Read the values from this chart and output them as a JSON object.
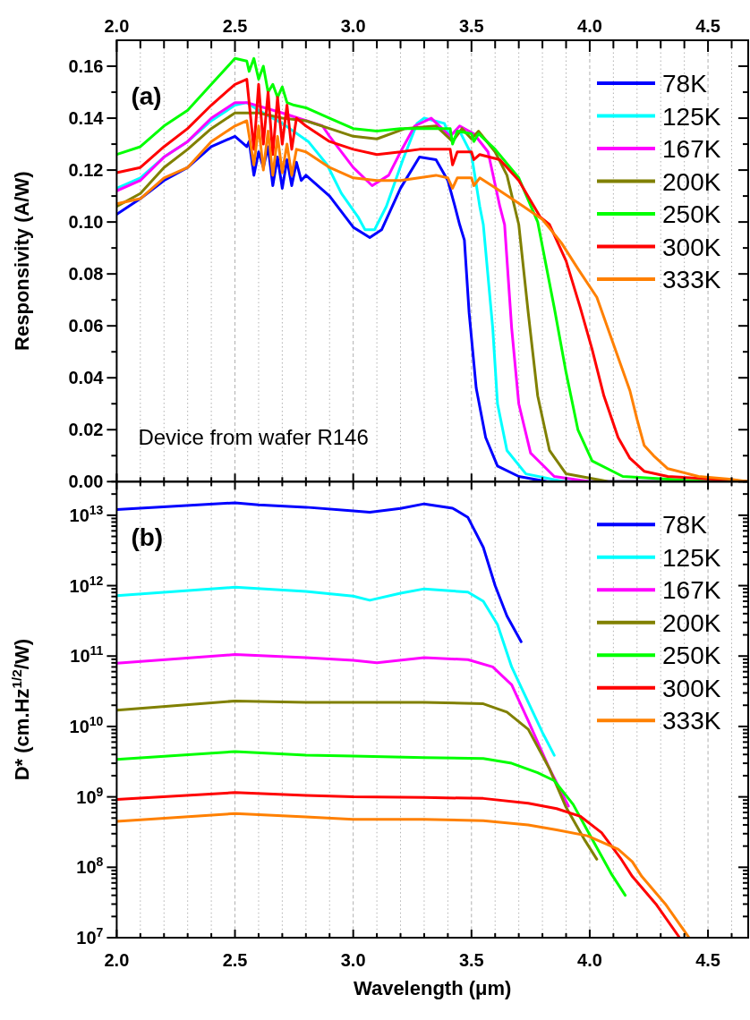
{
  "chart_data": [
    {
      "type": "line",
      "ylabel": "Responsivity (A/W)",
      "legend": "top right",
      "grid": "x",
      "line_style": "solid",
      "annotations": [
        "(a)",
        "Device from wafer R146"
      ],
      "xlim": [
        2.0,
        4.67
      ],
      "ylim": [
        0,
        0.17
      ],
      "xticks": [
        {
          "value": 2.0,
          "label": "2.0"
        },
        {
          "value": 2.1,
          "label": null
        },
        {
          "value": 2.2,
          "label": null
        },
        {
          "value": 2.3,
          "label": null
        },
        {
          "value": 2.4,
          "label": null
        },
        {
          "value": 2.5,
          "label": "2.5"
        },
        {
          "value": 2.6,
          "label": null
        },
        {
          "value": 2.7,
          "label": null
        },
        {
          "value": 2.8,
          "label": null
        },
        {
          "value": 2.9,
          "label": null
        },
        {
          "value": 3.0,
          "label": "3.0"
        },
        {
          "value": 3.1,
          "label": null
        },
        {
          "value": 3.2,
          "label": null
        },
        {
          "value": 3.3,
          "label": null
        },
        {
          "value": 3.4,
          "label": null
        },
        {
          "value": 3.5,
          "label": "3.5"
        },
        {
          "value": 3.6,
          "label": null
        },
        {
          "value": 3.7,
          "label": null
        },
        {
          "value": 3.8,
          "label": null
        },
        {
          "value": 3.9,
          "label": null
        },
        {
          "value": 4.0,
          "label": "4.0"
        },
        {
          "value": 4.1,
          "label": null
        },
        {
          "value": 4.2,
          "label": null
        },
        {
          "value": 4.3,
          "label": null
        },
        {
          "value": 4.4,
          "label": null
        },
        {
          "value": 4.5,
          "label": "4.5"
        },
        {
          "value": 4.6,
          "label": null
        }
      ],
      "yticks": [
        {
          "value": 0,
          "label": "0.00"
        },
        {
          "value": 0.01,
          "label": null
        },
        {
          "value": 0.02,
          "label": "0.02"
        },
        {
          "value": 0.03,
          "label": null
        },
        {
          "value": 0.04,
          "label": "0.04"
        },
        {
          "value": 0.05,
          "label": null
        },
        {
          "value": 0.06,
          "label": "0.06"
        },
        {
          "value": 0.07,
          "label": null
        },
        {
          "value": 0.08,
          "label": "0.08"
        },
        {
          "value": 0.09,
          "label": null
        },
        {
          "value": 0.1,
          "label": "0.10"
        },
        {
          "value": 0.11,
          "label": null
        },
        {
          "value": 0.12,
          "label": "0.12"
        },
        {
          "value": 0.13,
          "label": null
        },
        {
          "value": 0.14,
          "label": "0.14"
        },
        {
          "value": 0.15,
          "label": null
        },
        {
          "value": 0.16,
          "label": "0.16"
        }
      ],
      "series": [
        {
          "name": "78K",
          "color": "#0000ff",
          "x": [
            2.0,
            2.1,
            2.2,
            2.3,
            2.4,
            2.5,
            2.55,
            2.56,
            2.58,
            2.6,
            2.62,
            2.64,
            2.66,
            2.68,
            2.7,
            2.72,
            2.74,
            2.76,
            2.78,
            2.8,
            2.9,
            3.0,
            3.07,
            3.12,
            3.2,
            3.28,
            3.35,
            3.4,
            3.43,
            3.45,
            3.47,
            3.49,
            3.52,
            3.56,
            3.61,
            3.7,
            3.82,
            3.9,
            4.67
          ],
          "values": [
            0.103,
            0.109,
            0.116,
            0.121,
            0.129,
            0.133,
            0.129,
            0.131,
            0.118,
            0.127,
            0.121,
            0.129,
            0.114,
            0.125,
            0.113,
            0.124,
            0.114,
            0.123,
            0.116,
            0.118,
            0.11,
            0.098,
            0.094,
            0.097,
            0.113,
            0.125,
            0.124,
            0.116,
            0.106,
            0.099,
            0.093,
            0.065,
            0.036,
            0.017,
            0.006,
            0.002,
            0,
            0,
            0
          ]
        },
        {
          "name": "125K",
          "color": "#00ffff",
          "x": [
            2.0,
            2.1,
            2.2,
            2.3,
            2.4,
            2.5,
            2.55,
            2.6,
            2.7,
            2.81,
            2.89,
            2.95,
            3.02,
            3.05,
            3.09,
            3.14,
            3.21,
            3.27,
            3.3,
            3.385,
            3.42,
            3.45,
            3.5,
            3.535,
            3.55,
            3.59,
            3.61,
            3.65,
            3.73,
            3.89,
            4.67
          ],
          "values": [
            0.113,
            0.117,
            0.125,
            0.131,
            0.139,
            0.145,
            0.146,
            0.143,
            0.138,
            0.131,
            0.122,
            0.111,
            0.102,
            0.097,
            0.097,
            0.106,
            0.124,
            0.138,
            0.14,
            0.138,
            0.131,
            0.135,
            0.126,
            0.106,
            0.099,
            0.059,
            0.03,
            0.012,
            0.003,
            0,
            0
          ]
        },
        {
          "name": "167K",
          "color": "#ff00ff",
          "x": [
            2.0,
            2.1,
            2.2,
            2.3,
            2.4,
            2.5,
            2.55,
            2.7,
            2.87,
            2.9,
            3.0,
            3.08,
            3.15,
            3.2,
            3.26,
            3.33,
            3.41,
            3.45,
            3.51,
            3.57,
            3.62,
            3.64,
            3.67,
            3.7,
            3.75,
            3.85,
            4.0,
            4.67
          ],
          "values": [
            0.112,
            0.116,
            0.125,
            0.131,
            0.14,
            0.146,
            0.146,
            0.142,
            0.137,
            0.133,
            0.121,
            0.114,
            0.118,
            0.127,
            0.137,
            0.14,
            0.133,
            0.137,
            0.134,
            0.127,
            0.106,
            0.099,
            0.059,
            0.03,
            0.011,
            0.002,
            0,
            0
          ]
        },
        {
          "name": "200K",
          "color": "#808000",
          "x": [
            2.0,
            2.1,
            2.2,
            2.3,
            2.4,
            2.5,
            2.6,
            2.7,
            2.8,
            2.9,
            3.0,
            3.1,
            3.22,
            3.35,
            3.42,
            3.46,
            3.5,
            3.53,
            3.6,
            3.65,
            3.7,
            3.74,
            3.78,
            3.83,
            3.9,
            4.08,
            4.67
          ],
          "values": [
            0.106,
            0.111,
            0.121,
            0.128,
            0.136,
            0.142,
            0.142,
            0.14,
            0.139,
            0.136,
            0.133,
            0.132,
            0.136,
            0.137,
            0.131,
            0.136,
            0.132,
            0.135,
            0.127,
            0.118,
            0.099,
            0.065,
            0.033,
            0.012,
            0.003,
            0,
            0
          ]
        },
        {
          "name": "250K",
          "color": "#00ff00",
          "x": [
            2.0,
            2.1,
            2.2,
            2.3,
            2.4,
            2.5,
            2.55,
            2.56,
            2.58,
            2.6,
            2.62,
            2.64,
            2.66,
            2.68,
            2.7,
            2.72,
            2.75,
            2.8,
            2.9,
            3.0,
            3.1,
            3.2,
            3.28,
            3.41,
            3.42,
            3.44,
            3.5,
            3.51,
            3.53,
            3.6,
            3.7,
            3.78,
            3.85,
            3.9,
            3.95,
            4.01,
            4.14,
            4.33,
            4.5,
            4.67
          ],
          "values": [
            0.126,
            0.129,
            0.137,
            0.143,
            0.153,
            0.163,
            0.162,
            0.158,
            0.163,
            0.155,
            0.16,
            0.15,
            0.153,
            0.148,
            0.152,
            0.146,
            0.145,
            0.144,
            0.14,
            0.136,
            0.135,
            0.136,
            0.136,
            0.136,
            0.13,
            0.135,
            0.134,
            0.131,
            0.134,
            0.128,
            0.117,
            0.1,
            0.067,
            0.042,
            0.02,
            0.008,
            0.002,
            0.001,
            0,
            0
          ]
        },
        {
          "name": "300K",
          "color": "#ff0000",
          "x": [
            2.0,
            2.1,
            2.2,
            2.3,
            2.4,
            2.5,
            2.55,
            2.58,
            2.6,
            2.62,
            2.64,
            2.66,
            2.68,
            2.7,
            2.72,
            2.74,
            2.76,
            2.8,
            2.9,
            3.0,
            3.1,
            3.2,
            3.28,
            3.41,
            3.42,
            3.44,
            3.5,
            3.51,
            3.535,
            3.62,
            3.7,
            3.79,
            3.83,
            3.9,
            3.96,
            4.01,
            4.06,
            4.12,
            4.17,
            4.23,
            4.33,
            4.52,
            4.67
          ],
          "values": [
            0.119,
            0.121,
            0.129,
            0.136,
            0.145,
            0.153,
            0.155,
            0.128,
            0.153,
            0.13,
            0.15,
            0.126,
            0.148,
            0.13,
            0.145,
            0.128,
            0.14,
            0.137,
            0.131,
            0.128,
            0.126,
            0.127,
            0.128,
            0.128,
            0.122,
            0.127,
            0.127,
            0.124,
            0.126,
            0.124,
            0.116,
            0.102,
            0.099,
            0.085,
            0.067,
            0.051,
            0.033,
            0.017,
            0.009,
            0.004,
            0.002,
            0.001,
            0
          ]
        },
        {
          "name": "333K",
          "color": "#ff8000",
          "x": [
            2.0,
            2.1,
            2.2,
            2.3,
            2.4,
            2.5,
            2.55,
            2.58,
            2.6,
            2.62,
            2.64,
            2.66,
            2.68,
            2.7,
            2.72,
            2.74,
            2.76,
            2.8,
            2.9,
            3.0,
            3.1,
            3.2,
            3.35,
            3.4,
            3.42,
            3.44,
            3.5,
            3.51,
            3.535,
            3.62,
            3.72,
            3.8,
            3.88,
            3.95,
            4.03,
            4.1,
            4.17,
            4.2,
            4.23,
            4.27,
            4.33,
            4.46,
            4.59,
            4.67
          ],
          "values": [
            0.107,
            0.109,
            0.117,
            0.121,
            0.131,
            0.137,
            0.139,
            0.122,
            0.137,
            0.12,
            0.135,
            0.118,
            0.133,
            0.119,
            0.13,
            0.118,
            0.128,
            0.127,
            0.121,
            0.117,
            0.116,
            0.116,
            0.118,
            0.117,
            0.113,
            0.117,
            0.117,
            0.114,
            0.117,
            0.112,
            0.106,
            0.101,
            0.092,
            0.082,
            0.071,
            0.053,
            0.035,
            0.024,
            0.014,
            0.01,
            0.005,
            0.002,
            0.001,
            0
          ]
        }
      ]
    },
    {
      "type": "line",
      "xlabel": "Wavelength (μm)",
      "ylabel": "D* (cm.Hz$^{1/2}$/W)",
      "legend": "top right",
      "grid": "x",
      "line_style": "solid",
      "log": "y",
      "annotations": [
        "(b)"
      ],
      "xlim": [
        2.0,
        4.67
      ],
      "ylim": [
        10000000.0,
        30000000000000.0
      ],
      "xticks": [
        {
          "value": 2.0,
          "label": "2.0"
        },
        {
          "value": 2.1,
          "label": null
        },
        {
          "value": 2.2,
          "label": null
        },
        {
          "value": 2.3,
          "label": null
        },
        {
          "value": 2.4,
          "label": null
        },
        {
          "value": 2.5,
          "label": "2.5"
        },
        {
          "value": 2.6,
          "label": null
        },
        {
          "value": 2.7,
          "label": null
        },
        {
          "value": 2.8,
          "label": null
        },
        {
          "value": 2.9,
          "label": null
        },
        {
          "value": 3.0,
          "label": "3.0"
        },
        {
          "value": 3.1,
          "label": null
        },
        {
          "value": 3.2,
          "label": null
        },
        {
          "value": 3.3,
          "label": null
        },
        {
          "value": 3.4,
          "label": null
        },
        {
          "value": 3.5,
          "label": "3.5"
        },
        {
          "value": 3.6,
          "label": null
        },
        {
          "value": 3.7,
          "label": null
        },
        {
          "value": 3.8,
          "label": null
        },
        {
          "value": 3.9,
          "label": null
        },
        {
          "value": 4.0,
          "label": "4.0"
        },
        {
          "value": 4.1,
          "label": null
        },
        {
          "value": 4.2,
          "label": null
        },
        {
          "value": 4.3,
          "label": null
        },
        {
          "value": 4.4,
          "label": null
        },
        {
          "value": 4.5,
          "label": "4.5"
        },
        {
          "value": 4.6,
          "label": null
        }
      ],
      "yticks": [
        {
          "value": 10000000.0,
          "label": "10$^{7}$"
        },
        {
          "value": 20000000.0,
          "label": null
        },
        {
          "value": 30000000.0,
          "label": null
        },
        {
          "value": 40000000.0,
          "label": null
        },
        {
          "value": 50000000.0,
          "label": null
        },
        {
          "value": 60000000.0,
          "label": null
        },
        {
          "value": 70000000.0,
          "label": null
        },
        {
          "value": 80000000.0,
          "label": null
        },
        {
          "value": 90000000.0,
          "label": null
        },
        {
          "value": 100000000.0,
          "label": "10$^{8}$"
        },
        {
          "value": 200000000.0,
          "label": null
        },
        {
          "value": 300000000.0,
          "label": null
        },
        {
          "value": 400000000.0,
          "label": null
        },
        {
          "value": 500000000.0,
          "label": null
        },
        {
          "value": 600000000.0,
          "label": null
        },
        {
          "value": 700000000.0,
          "label": null
        },
        {
          "value": 800000000.0,
          "label": null
        },
        {
          "value": 900000000.0,
          "label": null
        },
        {
          "value": 1000000000.0,
          "label": "10$^{9}$"
        },
        {
          "value": 2000000000.0,
          "label": null
        },
        {
          "value": 3000000000.0,
          "label": null
        },
        {
          "value": 4000000000.0,
          "label": null
        },
        {
          "value": 5000000000.0,
          "label": null
        },
        {
          "value": 6000000000.0,
          "label": null
        },
        {
          "value": 7000000000.0,
          "label": null
        },
        {
          "value": 8000000000.0,
          "label": null
        },
        {
          "value": 9000000000.0,
          "label": null
        },
        {
          "value": 10000000000.0,
          "label": "10$^{10}$"
        },
        {
          "value": 20000000000.0,
          "label": null
        },
        {
          "value": 30000000000.0,
          "label": null
        },
        {
          "value": 40000000000.0,
          "label": null
        },
        {
          "value": 50000000000.0,
          "label": null
        },
        {
          "value": 60000000000.0,
          "label": null
        },
        {
          "value": 70000000000.0,
          "label": null
        },
        {
          "value": 80000000000.0,
          "label": null
        },
        {
          "value": 90000000000.0,
          "label": null
        },
        {
          "value": 100000000000.0,
          "label": "10$^{11}$"
        },
        {
          "value": 200000000000.0,
          "label": null
        },
        {
          "value": 300000000000.0,
          "label": null
        },
        {
          "value": 400000000000.0,
          "label": null
        },
        {
          "value": 500000000000.0,
          "label": null
        },
        {
          "value": 600000000000.0,
          "label": null
        },
        {
          "value": 700000000000.0,
          "label": null
        },
        {
          "value": 800000000000.0,
          "label": null
        },
        {
          "value": 900000000000.0,
          "label": null
        },
        {
          "value": 1000000000000.0,
          "label": "10$^{12}$"
        },
        {
          "value": 2000000000000.0,
          "label": null
        },
        {
          "value": 3000000000000.0,
          "label": null
        },
        {
          "value": 4000000000000.0,
          "label": null
        },
        {
          "value": 5000000000000.0,
          "label": null
        },
        {
          "value": 6000000000000.0,
          "label": null
        },
        {
          "value": 7000000000000.0,
          "label": null
        },
        {
          "value": 8000000000000.0,
          "label": null
        },
        {
          "value": 9000000000000.0,
          "label": null
        },
        {
          "value": 10000000000000.0,
          "label": "10$^{13}$"
        },
        {
          "value": 20000000000000.0,
          "label": null
        },
        {
          "value": 30000000000000.0,
          "label": null
        }
      ],
      "series": [
        {
          "name": "78K",
          "color": "#0000ff",
          "x": [
            2.0,
            2.5,
            2.6,
            2.8,
            3.0,
            3.07,
            3.2,
            3.3,
            3.42,
            3.485,
            3.55,
            3.6,
            3.65,
            3.71
          ],
          "values": [
            12000000000000.0,
            15000000000000.0,
            14000000000000.0,
            13000000000000.0,
            11500000000000.0,
            11000000000000.0,
            12500000000000.0,
            14500000000000.0,
            12600000000000.0,
            9300000000000.0,
            3500000000000.0,
            1000000000000.0,
            370000000000.0,
            160000000000.0
          ]
        },
        {
          "name": "125K",
          "color": "#00ffff",
          "x": [
            2.0,
            2.5,
            2.8,
            3.0,
            3.07,
            3.2,
            3.3,
            3.485,
            3.55,
            3.61,
            3.67,
            3.74,
            3.8,
            3.85
          ],
          "values": [
            720000000000.0,
            950000000000.0,
            830000000000.0,
            710000000000.0,
            620000000000.0,
            780000000000.0,
            900000000000.0,
            810000000000.0,
            600000000000.0,
            280000000000.0,
            70000000000.0,
            22000000000.0,
            8200000000.0,
            3900000000.0
          ]
        },
        {
          "name": "167K",
          "color": "#ff00ff",
          "x": [
            2.0,
            2.5,
            2.8,
            3.0,
            3.1,
            3.3,
            3.485,
            3.59,
            3.67,
            3.74,
            3.83,
            3.91
          ],
          "values": [
            79000000000.0,
            105000000000.0,
            95000000000.0,
            87000000000.0,
            80000000000.0,
            95000000000.0,
            89000000000.0,
            70000000000.0,
            39000000000.0,
            12000000000.0,
            2500000000.0,
            740000000.0
          ]
        },
        {
          "name": "200K",
          "color": "#808000",
          "x": [
            2.0,
            2.5,
            2.8,
            3.0,
            3.3,
            3.55,
            3.65,
            3.74,
            3.83,
            3.9,
            3.98,
            4.03
          ],
          "values": [
            17000000000.0,
            23000000000.0,
            22000000000.0,
            22000000000.0,
            22000000000.0,
            21000000000.0,
            16000000000.0,
            9100000000.0,
            2500000000.0,
            710000000.0,
            240000000.0,
            130000000.0
          ]
        },
        {
          "name": "250K",
          "color": "#00ff00",
          "x": [
            2.0,
            2.5,
            2.8,
            3.0,
            3.3,
            3.55,
            3.67,
            3.78,
            3.85,
            3.93,
            4.0,
            4.09,
            4.15
          ],
          "values": [
            3400000000.0,
            4400000000.0,
            3900000000.0,
            3800000000.0,
            3600000000.0,
            3500000000.0,
            3000000000.0,
            2200000000.0,
            1700000000.0,
            780000000.0,
            290000000.0,
            82000000.0,
            40000000.0
          ]
        },
        {
          "name": "300K",
          "color": "#ff0000",
          "x": [
            2.0,
            2.5,
            2.8,
            3.0,
            3.3,
            3.55,
            3.74,
            3.86,
            3.96,
            4.05,
            4.13,
            4.18,
            4.28,
            4.38
          ],
          "values": [
            920000000.0,
            1150000000.0,
            1050000000.0,
            1000000000.0,
            980000000.0,
            950000000.0,
            810000000.0,
            680000000.0,
            530000000.0,
            310000000.0,
            135000000.0,
            74000000.0,
            30000000.0,
            10000000.0
          ]
        },
        {
          "name": "333K",
          "color": "#ff8000",
          "x": [
            2.0,
            2.5,
            2.8,
            3.0,
            3.3,
            3.55,
            3.74,
            3.86,
            3.99,
            4.12,
            4.18,
            4.22,
            4.32,
            4.42
          ],
          "values": [
            450000000.0,
            580000000.0,
            520000000.0,
            480000000.0,
            480000000.0,
            460000000.0,
            400000000.0,
            340000000.0,
            280000000.0,
            180000000.0,
            120000000.0,
            74000000.0,
            30000000.0,
            10000000.0
          ]
        }
      ]
    }
  ]
}
